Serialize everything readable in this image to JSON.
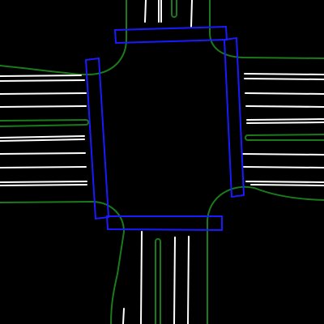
{
  "map": {
    "type": "intersection-lane-map",
    "background_color": "#000000",
    "legend": [],
    "colors": {
      "road_boundary": "#1b7a1b",
      "lane_marking": "#ffffff",
      "crosswalk": "#1a1aff"
    },
    "layers": [
      {
        "name": "road-boundaries",
        "color_key": "road_boundary"
      },
      {
        "name": "lane-markings",
        "color_key": "lane_marking"
      },
      {
        "name": "crosswalks",
        "color_key": "crosswalk"
      }
    ],
    "crosswalk_count": 4,
    "approaches": [
      "north",
      "south",
      "east",
      "west"
    ]
  }
}
